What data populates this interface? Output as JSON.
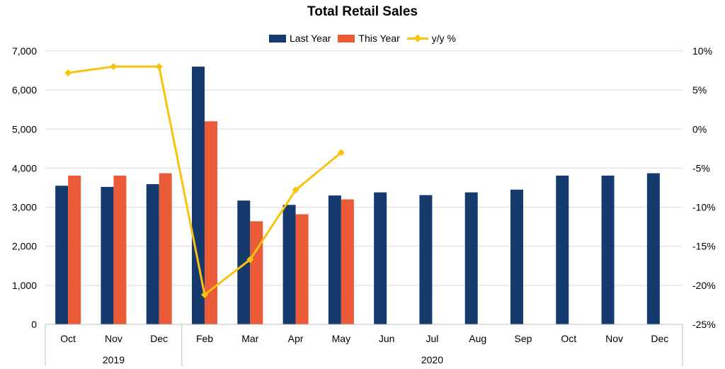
{
  "chart_data": {
    "type": "bar",
    "title": "Total Retail Sales",
    "categories": [
      "Oct",
      "Nov",
      "Dec",
      "Feb",
      "Mar",
      "Apr",
      "May",
      "Jun",
      "Jul",
      "Aug",
      "Sep",
      "Oct",
      "Nov",
      "Dec"
    ],
    "groups": [
      {
        "label": "2019",
        "from": 0,
        "to": 2
      },
      {
        "label": "2020",
        "from": 3,
        "to": 13
      }
    ],
    "series": [
      {
        "name": "Last Year",
        "type": "bar",
        "axis": "left",
        "color": "#143a6e",
        "values": [
          3550,
          3520,
          3590,
          6600,
          3170,
          3060,
          3300,
          3380,
          3310,
          3380,
          3450,
          3810,
          3810,
          3870
        ]
      },
      {
        "name": "This Year",
        "type": "bar",
        "axis": "left",
        "color": "#ec5b37",
        "values": [
          3810,
          3810,
          3870,
          5200,
          2640,
          2820,
          3200,
          null,
          null,
          null,
          null,
          null,
          null,
          null
        ]
      },
      {
        "name": "y/y %",
        "type": "line",
        "axis": "right",
        "color": "#f9c20e",
        "values": [
          7.2,
          8.0,
          8.0,
          -21.2,
          -16.7,
          -7.8,
          -3.0,
          null,
          null,
          null,
          null,
          null,
          null,
          null
        ]
      }
    ],
    "y_left": {
      "ylim": [
        0,
        7000
      ],
      "ticks": [
        0,
        1000,
        2000,
        3000,
        4000,
        5000,
        6000,
        7000
      ],
      "tick_labels": [
        "0",
        "1,000",
        "2,000",
        "3,000",
        "4,000",
        "5,000",
        "6,000",
        "7,000"
      ]
    },
    "y_right": {
      "ylim": [
        -25,
        10
      ],
      "ticks": [
        10,
        5,
        0,
        -5,
        -10,
        -15,
        -20,
        -25
      ],
      "tick_labels": [
        "10%",
        "5%",
        "0%",
        "-5%",
        "-10%",
        "-15%",
        "-20%",
        "-25%"
      ]
    },
    "grid": true,
    "legend_position": "top-center"
  }
}
